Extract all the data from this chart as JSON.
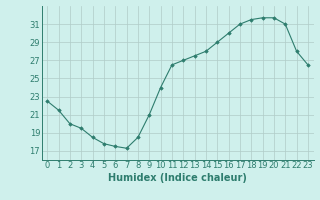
{
  "x": [
    0,
    1,
    2,
    3,
    4,
    5,
    6,
    7,
    8,
    9,
    10,
    11,
    12,
    13,
    14,
    15,
    16,
    17,
    18,
    19,
    20,
    21,
    22,
    23
  ],
  "y": [
    22.5,
    21.5,
    20.0,
    19.5,
    18.5,
    17.8,
    17.5,
    17.3,
    18.5,
    21.0,
    24.0,
    26.5,
    27.0,
    27.5,
    28.0,
    29.0,
    30.0,
    31.0,
    31.5,
    31.7,
    31.7,
    31.0,
    28.0,
    26.5
  ],
  "line_color": "#2e7d6e",
  "marker": "D",
  "marker_size": 1.8,
  "bg_color": "#cff0ec",
  "grid_color": "#b0ccc8",
  "xlabel": "Humidex (Indice chaleur)",
  "xlabel_fontsize": 7.0,
  "xlabel_color": "#2e7d6e",
  "tick_color": "#2e7d6e",
  "tick_fontsize": 6.0,
  "ylim": [
    16,
    33
  ],
  "yticks": [
    17,
    19,
    21,
    23,
    25,
    27,
    29,
    31
  ],
  "xlim": [
    -0.5,
    23.5
  ],
  "xticks": [
    0,
    1,
    2,
    3,
    4,
    5,
    6,
    7,
    8,
    9,
    10,
    11,
    12,
    13,
    14,
    15,
    16,
    17,
    18,
    19,
    20,
    21,
    22,
    23
  ]
}
